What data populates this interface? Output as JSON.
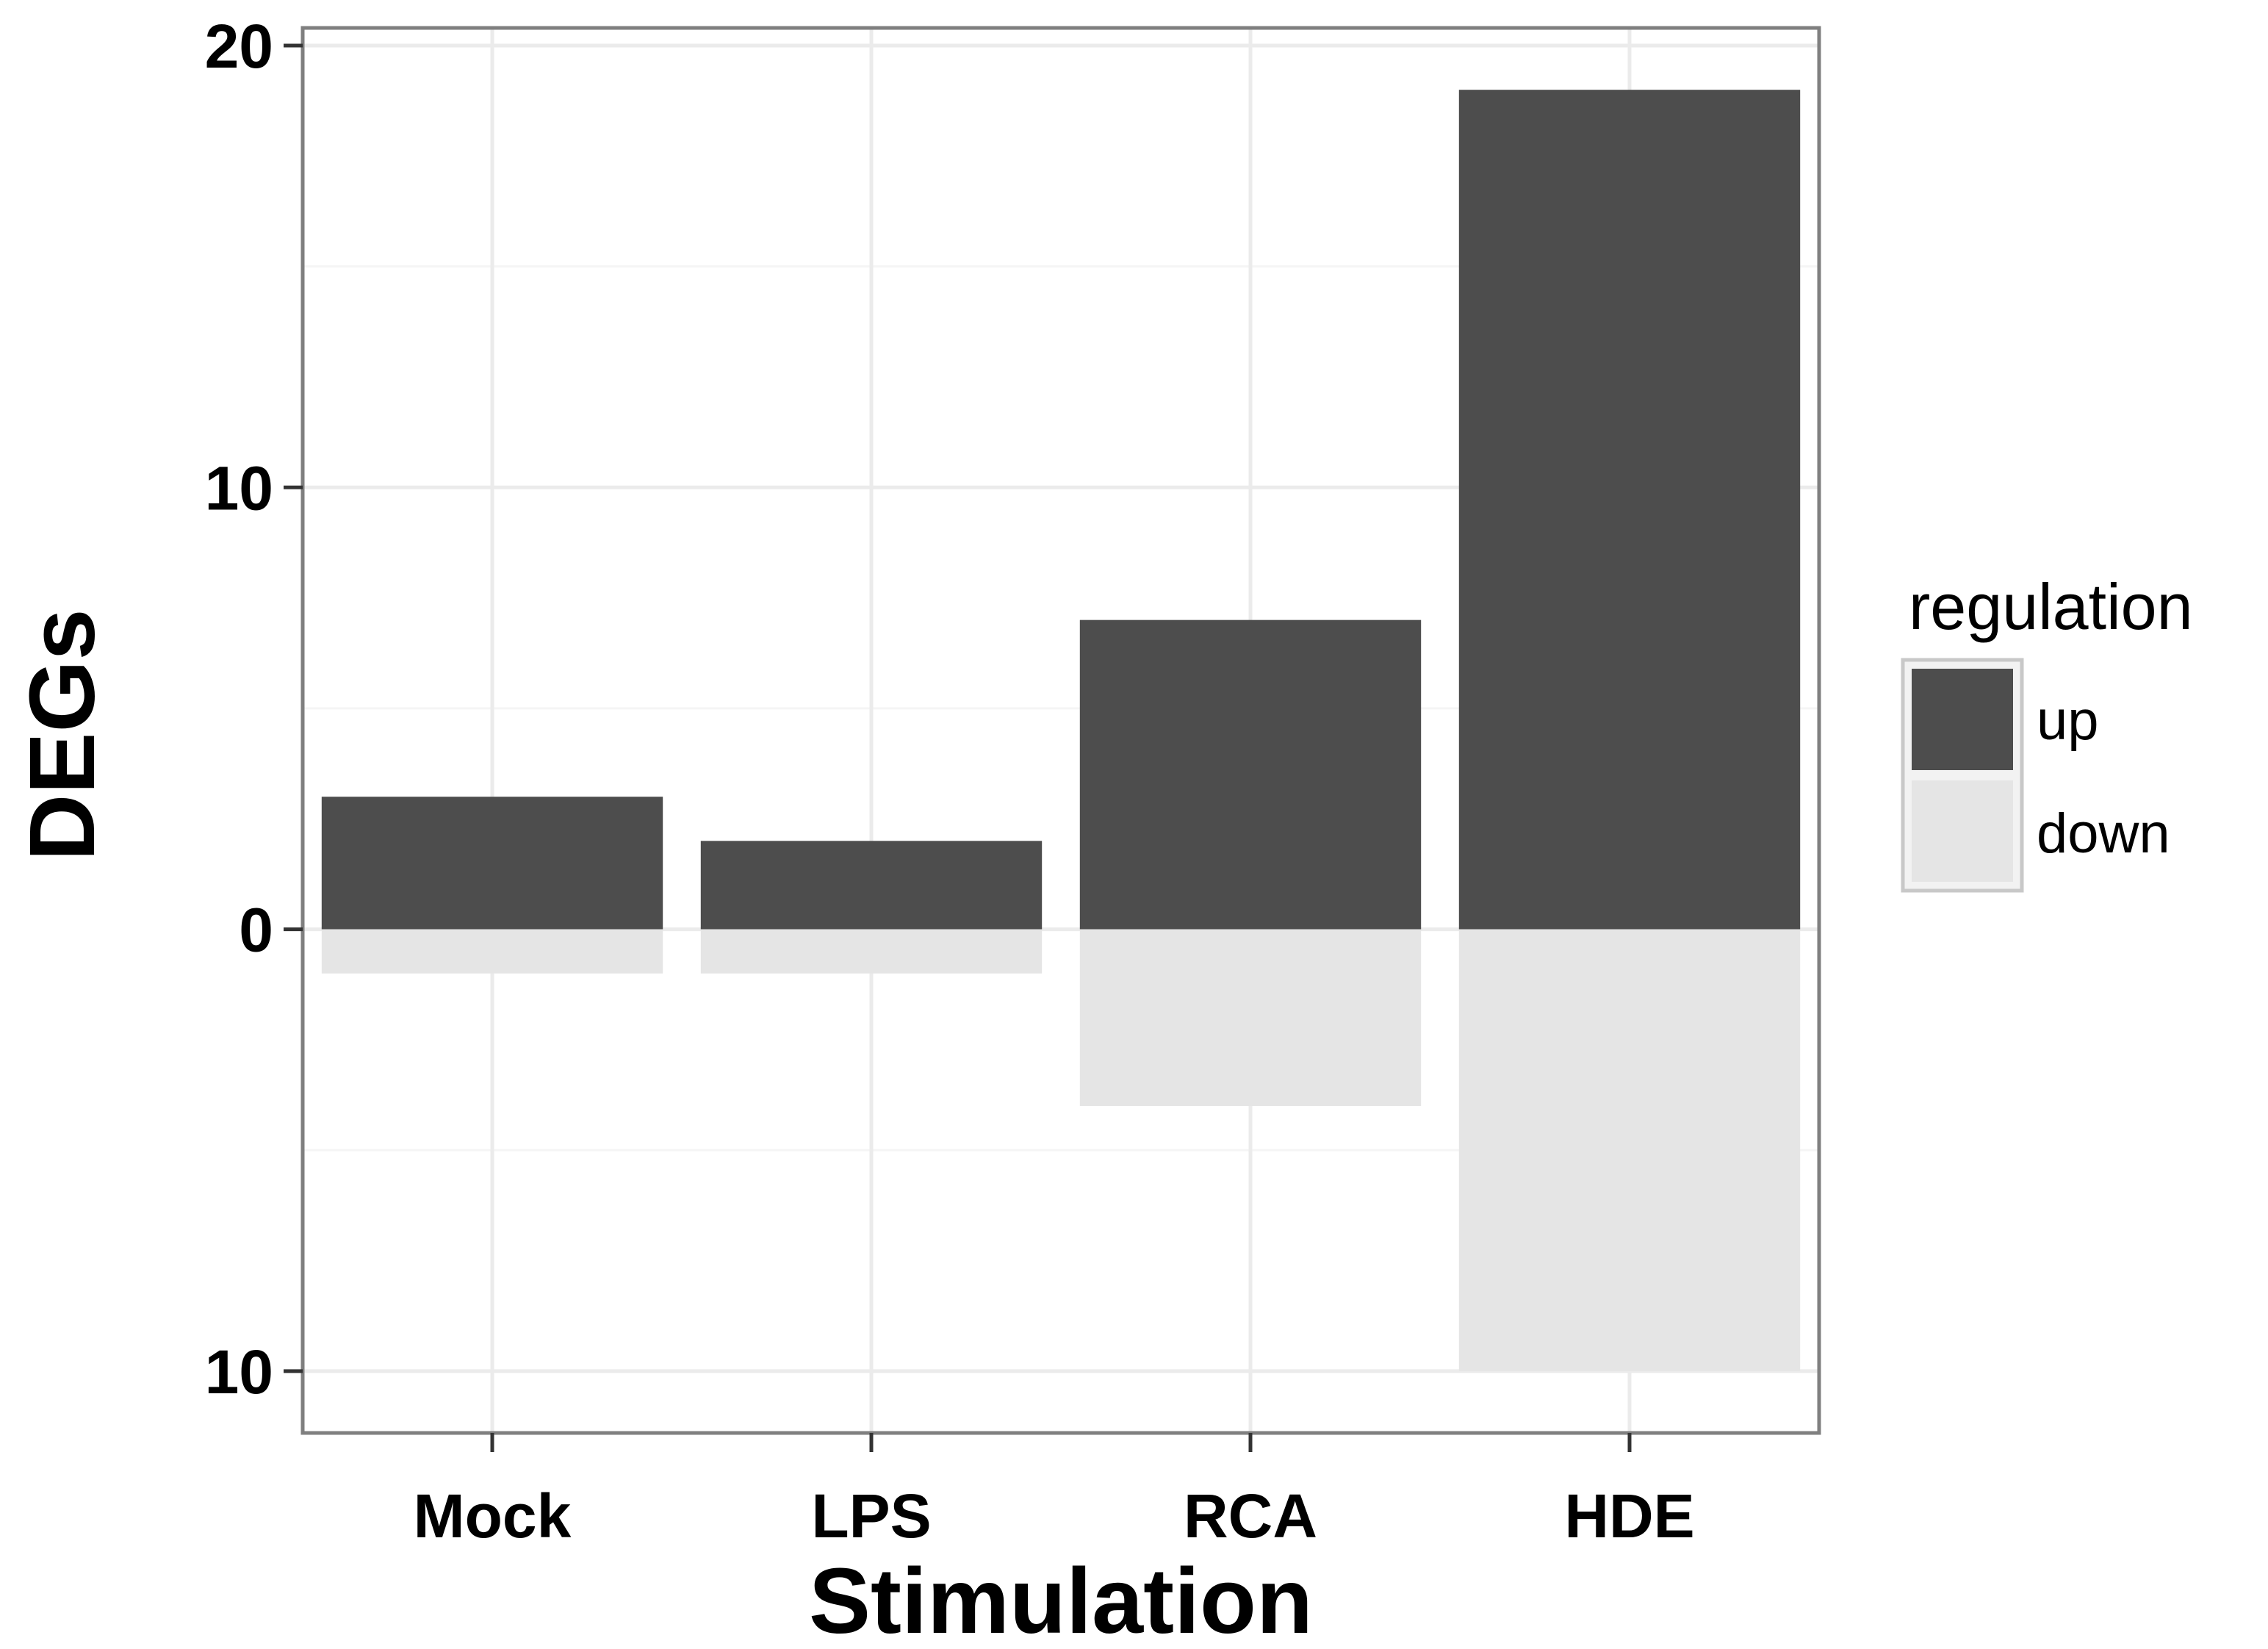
{
  "chart_data": {
    "type": "bar",
    "title": "",
    "xlabel": "Stimulation",
    "ylabel": "DEGs",
    "categories": [
      "Mock",
      "LPS",
      "RCA",
      "HDE"
    ],
    "series": [
      {
        "name": "up",
        "values": [
          3,
          2,
          7,
          19
        ],
        "color": "#4d4d4d"
      },
      {
        "name": "down",
        "values": [
          -1,
          -1,
          -4,
          -10
        ],
        "color": "#e5e5e5"
      }
    ],
    "ylim": [
      -11.4,
      20.4
    ],
    "y_ticks": [
      {
        "value": 20,
        "label": "20"
      },
      {
        "value": 10,
        "label": "10"
      },
      {
        "value": 0,
        "label": "0"
      },
      {
        "value": -10,
        "label": "10"
      }
    ],
    "grid": true,
    "legend": {
      "title": "regulation",
      "position": "right"
    },
    "stacked": "diverging"
  }
}
